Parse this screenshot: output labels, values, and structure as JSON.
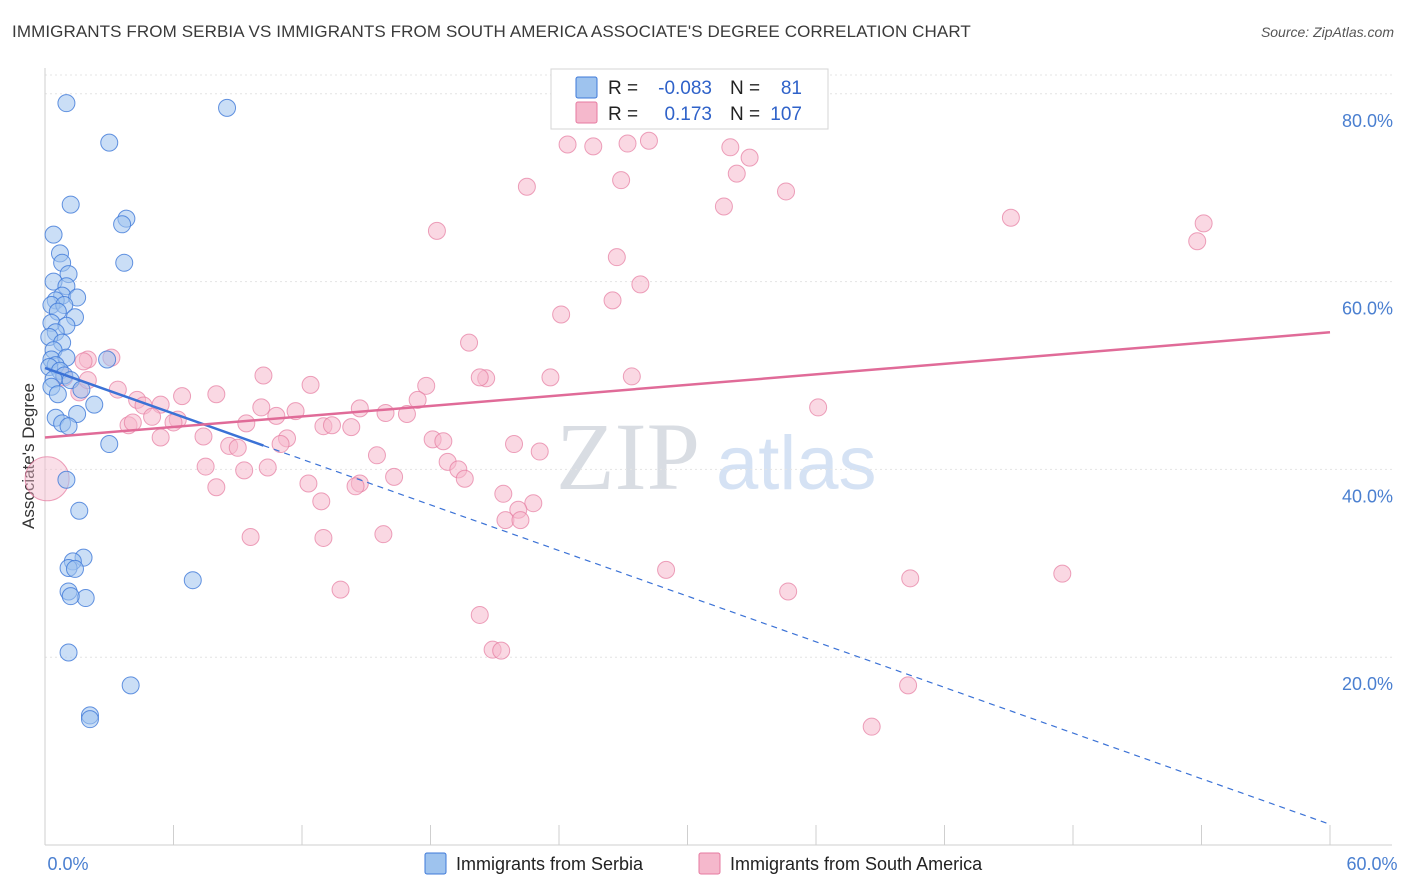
{
  "header": {
    "title": "IMMIGRANTS FROM SERBIA VS IMMIGRANTS FROM SOUTH AMERICA ASSOCIATE'S DEGREE CORRELATION CHART",
    "source": "Source: ZipAtlas.com"
  },
  "legend_box": {
    "r_label": "R =",
    "n_label": "N =",
    "rows": [
      {
        "r": "-0.083",
        "n": "81"
      },
      {
        "r": "0.173",
        "n": "107"
      }
    ]
  },
  "watermark": {
    "zip": "ZIP",
    "atlas": "atlas"
  },
  "colors": {
    "serbia_fill": "#9ec3ee",
    "serbia_stroke": "#3d78d8",
    "serbia_line": "#3b72d6",
    "sa_fill": "#f5b8cc",
    "sa_stroke": "#e67aa0",
    "sa_line": "#e06b98",
    "grid": "#e4e4e4",
    "tick_label": "#4a7fd0"
  },
  "chart_data": {
    "type": "scatter",
    "title": "IMMIGRANTS FROM SERBIA VS IMMIGRANTS FROM SOUTH AMERICA ASSOCIATE'S DEGREE CORRELATION CHART",
    "xlabel": "",
    "ylabel": "Associate's Degree",
    "xlim": [
      0,
      60
    ],
    "ylim": [
      0,
      82
    ],
    "x_tick_labels": {
      "left": "0.0%",
      "right": "60.0%"
    },
    "y_ticks": [
      {
        "value": 20,
        "label": "20.0%"
      },
      {
        "value": 40,
        "label": "40.0%"
      },
      {
        "value": 60,
        "label": "60.0%"
      },
      {
        "value": 80,
        "label": "80.0%"
      }
    ],
    "series": [
      {
        "name": "Immigrants from Serbia",
        "R": -0.083,
        "N": 81,
        "trend": {
          "x_solid": [
            0,
            10.2
          ],
          "x_dashed_end": 60,
          "y_at_0": 50.8,
          "slope": -0.81
        },
        "points": [
          [
            1.0,
            79.0
          ],
          [
            8.5,
            78.5
          ],
          [
            3.0,
            74.8
          ],
          [
            3.8,
            66.7
          ],
          [
            1.2,
            68.2
          ],
          [
            3.6,
            66.1
          ],
          [
            0.4,
            65.0
          ],
          [
            0.7,
            63.0
          ],
          [
            0.8,
            62.0
          ],
          [
            3.7,
            62.0
          ],
          [
            1.1,
            60.8
          ],
          [
            0.4,
            60.0
          ],
          [
            1.0,
            59.5
          ],
          [
            0.8,
            58.5
          ],
          [
            0.5,
            58.0
          ],
          [
            1.5,
            58.3
          ],
          [
            0.3,
            57.5
          ],
          [
            0.9,
            57.5
          ],
          [
            0.6,
            56.8
          ],
          [
            1.4,
            56.2
          ],
          [
            0.3,
            55.6
          ],
          [
            1.0,
            55.3
          ],
          [
            0.5,
            54.6
          ],
          [
            0.2,
            54.1
          ],
          [
            0.8,
            53.5
          ],
          [
            0.4,
            52.7
          ],
          [
            0.3,
            51.7
          ],
          [
            1.0,
            51.9
          ],
          [
            2.9,
            51.7
          ],
          [
            0.5,
            51.1
          ],
          [
            0.2,
            50.9
          ],
          [
            0.7,
            50.5
          ],
          [
            0.9,
            50.0
          ],
          [
            0.4,
            49.6
          ],
          [
            1.2,
            49.5
          ],
          [
            1.7,
            48.5
          ],
          [
            0.3,
            48.8
          ],
          [
            0.6,
            48.0
          ],
          [
            2.3,
            46.9
          ],
          [
            0.5,
            45.5
          ],
          [
            1.5,
            45.9
          ],
          [
            0.8,
            44.9
          ],
          [
            1.1,
            44.6
          ],
          [
            3.0,
            42.7
          ],
          [
            1.0,
            38.9
          ],
          [
            1.6,
            35.6
          ],
          [
            1.8,
            30.6
          ],
          [
            1.3,
            30.2
          ],
          [
            1.1,
            29.5
          ],
          [
            1.4,
            29.4
          ],
          [
            6.9,
            28.2
          ],
          [
            1.1,
            27.0
          ],
          [
            1.9,
            26.3
          ],
          [
            1.2,
            26.5
          ],
          [
            1.1,
            20.5
          ],
          [
            4.0,
            17.0
          ],
          [
            2.1,
            13.8
          ],
          [
            2.1,
            13.4
          ]
        ]
      },
      {
        "name": "Immigrants from South America",
        "R": 0.173,
        "N": 107,
        "trend": {
          "x0": 0,
          "y0": 43.4,
          "x1": 60,
          "y1": 54.6
        },
        "points": [
          [
            0.1,
            39.0
          ],
          [
            24.4,
            74.6
          ],
          [
            25.6,
            74.4
          ],
          [
            27.2,
            74.7
          ],
          [
            28.2,
            75.0
          ],
          [
            32.0,
            74.3
          ],
          [
            32.9,
            73.2
          ],
          [
            32.3,
            71.5
          ],
          [
            22.5,
            70.1
          ],
          [
            26.9,
            70.8
          ],
          [
            34.6,
            69.6
          ],
          [
            31.7,
            68.0
          ],
          [
            45.1,
            66.8
          ],
          [
            54.1,
            66.2
          ],
          [
            18.3,
            65.4
          ],
          [
            53.8,
            64.3
          ],
          [
            26.7,
            62.6
          ],
          [
            27.8,
            59.7
          ],
          [
            26.5,
            58.0
          ],
          [
            24.1,
            56.5
          ],
          [
            19.8,
            53.5
          ],
          [
            2.0,
            51.7
          ],
          [
            3.1,
            51.9
          ],
          [
            1.8,
            51.5
          ],
          [
            0.9,
            49.8
          ],
          [
            10.2,
            50.0
          ],
          [
            20.6,
            49.7
          ],
          [
            20.3,
            49.8
          ],
          [
            23.6,
            49.8
          ],
          [
            27.4,
            49.9
          ],
          [
            12.4,
            49.0
          ],
          [
            1.6,
            48.2
          ],
          [
            2.0,
            49.5
          ],
          [
            3.4,
            48.5
          ],
          [
            17.8,
            48.9
          ],
          [
            8.0,
            48.0
          ],
          [
            6.4,
            47.8
          ],
          [
            4.3,
            47.4
          ],
          [
            4.6,
            46.8
          ],
          [
            5.4,
            46.9
          ],
          [
            17.4,
            47.4
          ],
          [
            10.1,
            46.6
          ],
          [
            11.7,
            46.2
          ],
          [
            14.7,
            46.5
          ],
          [
            15.9,
            46.0
          ],
          [
            16.9,
            45.9
          ],
          [
            36.1,
            46.6
          ],
          [
            10.8,
            45.7
          ],
          [
            5.0,
            45.6
          ],
          [
            6.2,
            45.3
          ],
          [
            3.9,
            44.7
          ],
          [
            4.1,
            45.0
          ],
          [
            6.0,
            45.0
          ],
          [
            9.4,
            44.9
          ],
          [
            13.0,
            44.6
          ],
          [
            13.4,
            44.7
          ],
          [
            14.3,
            44.5
          ],
          [
            5.4,
            43.4
          ],
          [
            7.4,
            43.5
          ],
          [
            11.3,
            43.3
          ],
          [
            18.1,
            43.2
          ],
          [
            18.6,
            43.0
          ],
          [
            21.9,
            42.7
          ],
          [
            8.6,
            42.5
          ],
          [
            9.0,
            42.3
          ],
          [
            11.0,
            42.7
          ],
          [
            23.1,
            41.9
          ],
          [
            15.5,
            41.5
          ],
          [
            18.8,
            40.8
          ],
          [
            19.3,
            40.0
          ],
          [
            10.4,
            40.2
          ],
          [
            7.5,
            40.3
          ],
          [
            9.3,
            39.9
          ],
          [
            16.3,
            39.2
          ],
          [
            19.6,
            39.0
          ],
          [
            12.3,
            38.5
          ],
          [
            14.7,
            38.5
          ],
          [
            14.5,
            38.2
          ],
          [
            8.0,
            38.1
          ],
          [
            21.4,
            37.4
          ],
          [
            12.9,
            36.6
          ],
          [
            22.8,
            36.4
          ],
          [
            22.1,
            35.7
          ],
          [
            21.5,
            34.6
          ],
          [
            22.2,
            34.6
          ],
          [
            15.8,
            33.1
          ],
          [
            9.6,
            32.8
          ],
          [
            13.0,
            32.7
          ],
          [
            29.0,
            29.3
          ],
          [
            40.4,
            28.4
          ],
          [
            47.5,
            28.9
          ],
          [
            34.7,
            27.0
          ],
          [
            13.8,
            27.2
          ],
          [
            20.3,
            24.5
          ],
          [
            20.9,
            20.8
          ],
          [
            21.3,
            20.7
          ],
          [
            40.3,
            17.0
          ],
          [
            38.6,
            12.6
          ]
        ]
      }
    ]
  },
  "bottom_legend": {
    "items": [
      "Immigrants from Serbia",
      "Immigrants from South America"
    ]
  }
}
